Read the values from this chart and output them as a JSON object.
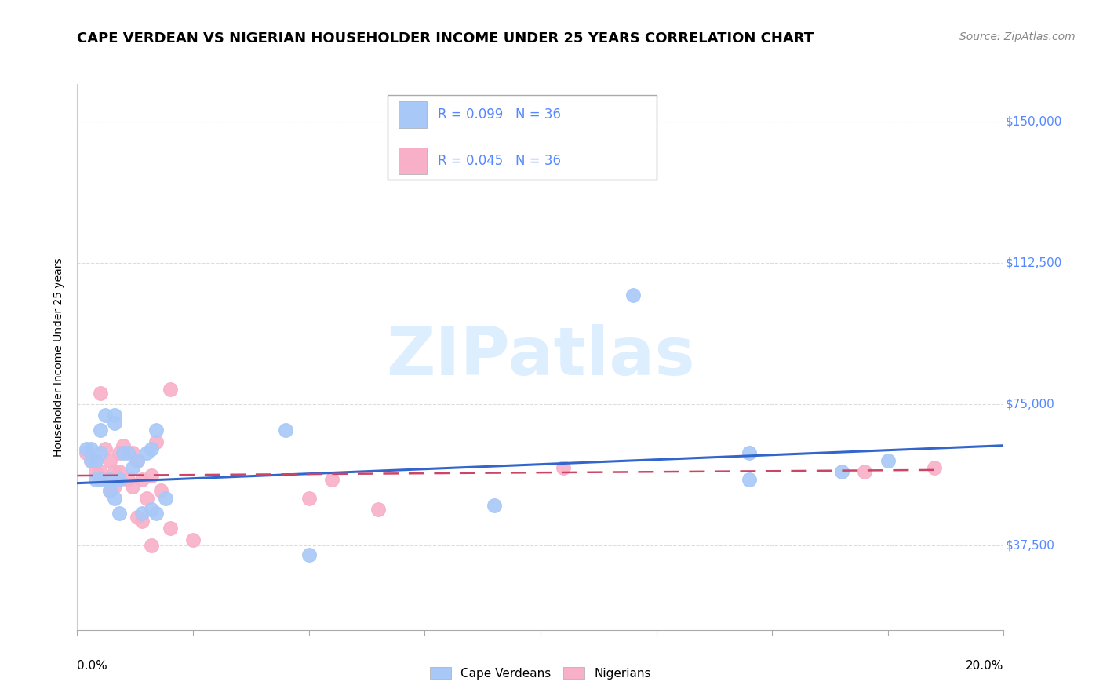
{
  "title": "CAPE VERDEAN VS NIGERIAN HOUSEHOLDER INCOME UNDER 25 YEARS CORRELATION CHART",
  "source": "Source: ZipAtlas.com",
  "ylabel": "Householder Income Under 25 years",
  "ytick_labels": [
    "$37,500",
    "$75,000",
    "$112,500",
    "$150,000"
  ],
  "ytick_values": [
    37500,
    75000,
    112500,
    150000
  ],
  "ymin": 15000,
  "ymax": 160000,
  "xmin": 0.0,
  "xmax": 0.2,
  "cv_color": "#a8c8f8",
  "ng_color": "#f8b0c8",
  "cv_line_color": "#3366cc",
  "ng_line_color": "#cc4466",
  "cv_scatter_x": [
    0.002,
    0.003,
    0.003,
    0.004,
    0.004,
    0.005,
    0.005,
    0.005,
    0.006,
    0.007,
    0.007,
    0.008,
    0.008,
    0.008,
    0.009,
    0.009,
    0.01,
    0.011,
    0.012,
    0.013,
    0.014,
    0.015,
    0.016,
    0.016,
    0.017,
    0.017,
    0.019,
    0.045,
    0.05,
    0.09,
    0.12,
    0.145,
    0.145,
    0.165,
    0.175
  ],
  "cv_scatter_y": [
    63000,
    63000,
    60000,
    60000,
    55000,
    68000,
    62000,
    55000,
    72000,
    55000,
    52000,
    50000,
    72000,
    70000,
    55000,
    46000,
    62000,
    62000,
    58000,
    60000,
    46000,
    62000,
    63000,
    47000,
    68000,
    46000,
    50000,
    68000,
    35000,
    48000,
    104000,
    55000,
    62000,
    57000,
    60000
  ],
  "ng_scatter_x": [
    0.002,
    0.003,
    0.004,
    0.004,
    0.005,
    0.005,
    0.006,
    0.006,
    0.007,
    0.007,
    0.008,
    0.008,
    0.009,
    0.009,
    0.01,
    0.011,
    0.012,
    0.012,
    0.013,
    0.013,
    0.014,
    0.014,
    0.015,
    0.016,
    0.016,
    0.017,
    0.018,
    0.02,
    0.02,
    0.025,
    0.05,
    0.055,
    0.065,
    0.105,
    0.17,
    0.185
  ],
  "ng_scatter_y": [
    62000,
    60000,
    60000,
    57000,
    78000,
    57000,
    63000,
    55000,
    60000,
    52000,
    57000,
    53000,
    57000,
    62000,
    64000,
    55000,
    53000,
    62000,
    45000,
    60000,
    55000,
    44000,
    50000,
    56000,
    37500,
    65000,
    52000,
    79000,
    42000,
    39000,
    50000,
    55000,
    47000,
    58000,
    57000,
    58000
  ],
  "cv_trend_x": [
    0.0,
    0.2
  ],
  "cv_trend_y": [
    54000,
    64000
  ],
  "ng_trend_x": [
    0.0,
    0.185
  ],
  "ng_trend_y": [
    56000,
    57500
  ],
  "watermark_color": "#ddeeff",
  "grid_color": "#dddddd",
  "ytick_color": "#5588ff",
  "title_fontsize": 13,
  "source_fontsize": 10,
  "axis_label_fontsize": 10,
  "tick_fontsize": 11
}
